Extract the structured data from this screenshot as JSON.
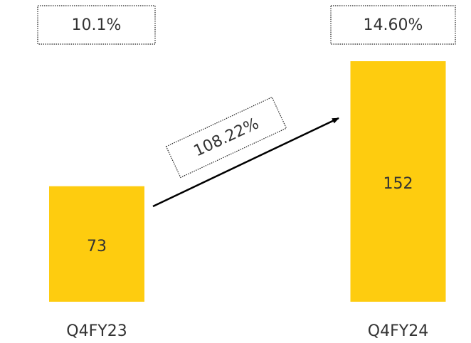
{
  "chart_data": {
    "type": "bar",
    "categories": [
      "Q4FY23",
      "Q4FY24"
    ],
    "values": [
      73,
      152
    ],
    "color": "#fecc0f",
    "ylim": [
      0,
      152
    ],
    "annotations": [
      "10.1%",
      "14.60%"
    ],
    "growth_label": "108.22%"
  }
}
